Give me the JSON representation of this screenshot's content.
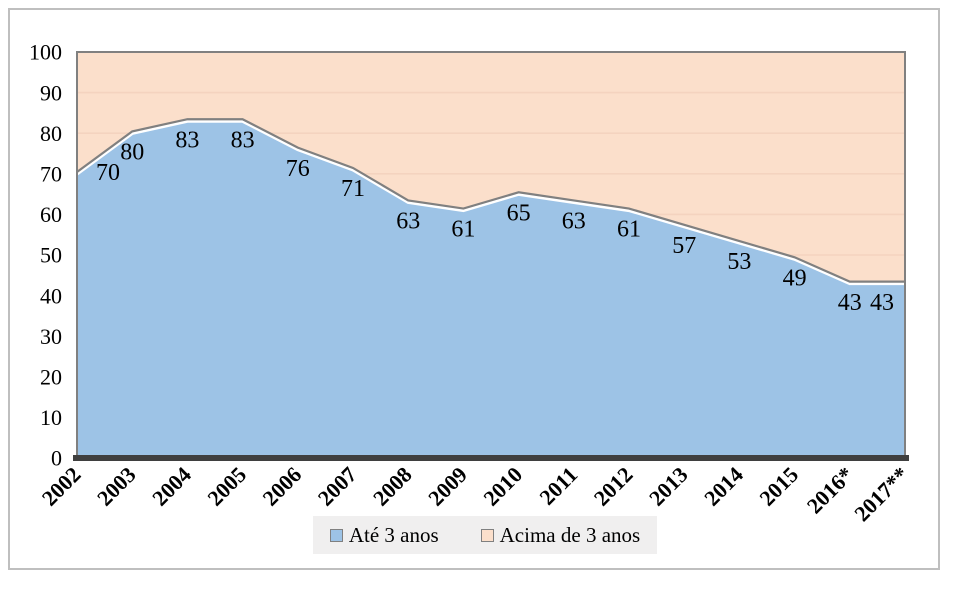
{
  "chart_data": {
    "type": "area",
    "stacked": true,
    "stack_total": 100,
    "title": "",
    "xlabel": "",
    "ylabel": "",
    "categories": [
      "2002",
      "2003",
      "2004",
      "2005",
      "2006",
      "2007",
      "2008",
      "2009",
      "2010",
      "2011",
      "2012",
      "2013",
      "2014",
      "2015",
      "2016*",
      "2017**"
    ],
    "series": [
      {
        "name": "Até 3 anos",
        "color": "#9DC3E6",
        "values": [
          70,
          80,
          83,
          83,
          76,
          71,
          63,
          61,
          65,
          63,
          61,
          57,
          53,
          49,
          43,
          43
        ],
        "data_labels": [
          "70",
          "80",
          "83",
          "83",
          "76",
          "71",
          "63",
          "61",
          "65",
          "63",
          "61",
          "57",
          "53",
          "49",
          "43",
          "43"
        ]
      },
      {
        "name": "Acima de 3 anos",
        "color": "#FBDFCB",
        "values": [
          30,
          20,
          17,
          17,
          24,
          29,
          37,
          39,
          35,
          37,
          39,
          43,
          47,
          51,
          57,
          57
        ],
        "data_labels": []
      }
    ],
    "y_axis": {
      "min": 0,
      "max": 100,
      "tick_step": 10,
      "tick_labels": [
        "0",
        "10",
        "20",
        "30",
        "40",
        "50",
        "60",
        "70",
        "80",
        "90",
        "100"
      ]
    },
    "grid": {
      "horizontal": true,
      "vertical": false
    },
    "legend_position": "bottom",
    "colors": {
      "boundary_line": "#808080",
      "boundary_edge": "#ffffff",
      "plot_border": "#808080",
      "axis_line": "#3f3f3f",
      "gridline": "#f4d3bf",
      "outer_border": "#bfbfbf",
      "legend_bg": "#f0efef",
      "text": "#000000"
    }
  }
}
